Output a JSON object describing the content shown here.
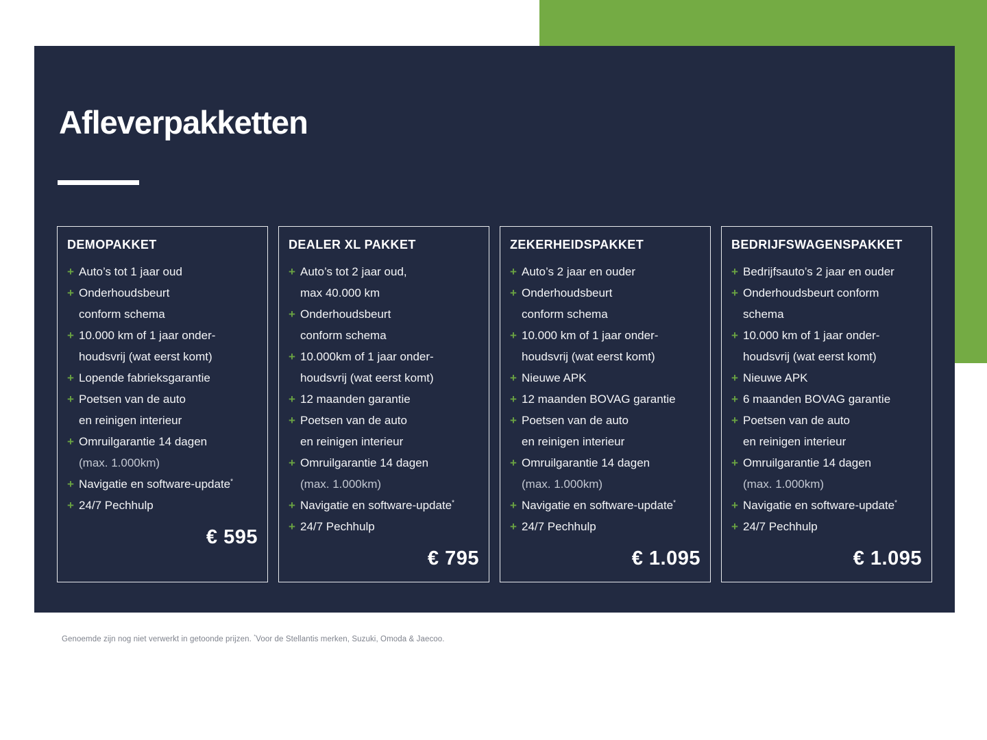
{
  "colors": {
    "background_navy": "#222a41",
    "accent_green": "#74ab44",
    "bullet_green": "#6aa342"
  },
  "bullet_glyph": "+",
  "header": {
    "title": "Afleverpakketten"
  },
  "packages": [
    {
      "name": "DEMOPAKKET",
      "price": "€ 595",
      "items": [
        {
          "lines": [
            {
              "text": "Auto’s tot 1 jaar oud"
            }
          ]
        },
        {
          "lines": [
            {
              "text": "Onderhoudsbeurt"
            },
            {
              "text": "conform schema"
            }
          ]
        },
        {
          "lines": [
            {
              "text": "10.000 km of 1 jaar onder-"
            },
            {
              "text": "houdsvrij (wat eerst komt)"
            }
          ]
        },
        {
          "lines": [
            {
              "text": "Lopende fabrieksgarantie"
            }
          ]
        },
        {
          "lines": [
            {
              "text": "Poetsen van de auto"
            },
            {
              "text": "en reinigen interieur"
            }
          ]
        },
        {
          "lines": [
            {
              "text": "Omruilgarantie 14 dagen"
            },
            {
              "text": "(max. 1.000km)",
              "muted": true
            }
          ]
        },
        {
          "lines": [
            {
              "text": "Navigatie en software-update",
              "sup": "*"
            }
          ]
        },
        {
          "lines": [
            {
              "text": "24/7 Pechhulp"
            }
          ]
        }
      ]
    },
    {
      "name": "DEALER XL PAKKET",
      "price": "€ 795",
      "items": [
        {
          "lines": [
            {
              "text": "Auto’s tot 2 jaar oud,"
            },
            {
              "text": "max 40.000 km"
            }
          ]
        },
        {
          "lines": [
            {
              "text": "Onderhoudsbeurt"
            },
            {
              "text": "conform schema"
            }
          ]
        },
        {
          "lines": [
            {
              "text": "10.000km of 1 jaar onder-"
            },
            {
              "text": "houdsvrij (wat eerst komt)"
            }
          ]
        },
        {
          "lines": [
            {
              "text": "12 maanden garantie"
            }
          ]
        },
        {
          "lines": [
            {
              "text": "Poetsen van de auto"
            },
            {
              "text": "en reinigen interieur"
            }
          ]
        },
        {
          "lines": [
            {
              "text": "Omruilgarantie 14 dagen"
            },
            {
              "text": "(max. 1.000km)",
              "muted": true
            }
          ]
        },
        {
          "lines": [
            {
              "text": "Navigatie en software-update",
              "sup": "*"
            }
          ]
        },
        {
          "lines": [
            {
              "text": "24/7 Pechhulp"
            }
          ]
        }
      ]
    },
    {
      "name": "ZEKERHEIDSPAKKET",
      "price": "€ 1.095",
      "items": [
        {
          "lines": [
            {
              "text": "Auto’s 2 jaar en ouder"
            }
          ]
        },
        {
          "lines": [
            {
              "text": "Onderhoudsbeurt"
            },
            {
              "text": "conform schema"
            }
          ]
        },
        {
          "lines": [
            {
              "text": "10.000 km of 1 jaar onder-"
            },
            {
              "text": "houdsvrij (wat eerst komt)"
            }
          ]
        },
        {
          "lines": [
            {
              "text": "Nieuwe APK"
            }
          ]
        },
        {
          "lines": [
            {
              "text": "12 maanden BOVAG garantie"
            }
          ]
        },
        {
          "lines": [
            {
              "text": "Poetsen van de auto"
            },
            {
              "text": "en reinigen interieur"
            }
          ]
        },
        {
          "lines": [
            {
              "text": "Omruilgarantie 14 dagen"
            },
            {
              "text": "(max. 1.000km)",
              "muted": true
            }
          ]
        },
        {
          "lines": [
            {
              "text": "Navigatie en software-update",
              "sup": "*"
            }
          ]
        },
        {
          "lines": [
            {
              "text": "24/7 Pechhulp"
            }
          ]
        }
      ]
    },
    {
      "name": "BEDRIJFSWAGENSPAKKET",
      "price": "€ 1.095",
      "items": [
        {
          "lines": [
            {
              "text": "Bedrijfsauto’s 2 jaar en ouder"
            }
          ]
        },
        {
          "lines": [
            {
              "text": "Onderhoudsbeurt conform"
            },
            {
              "text": "schema"
            }
          ]
        },
        {
          "lines": [
            {
              "text": "10.000 km of 1 jaar onder-"
            },
            {
              "text": "houdsvrij (wat eerst komt)"
            }
          ]
        },
        {
          "lines": [
            {
              "text": "Nieuwe APK"
            }
          ]
        },
        {
          "lines": [
            {
              "text": "6 maanden BOVAG garantie"
            }
          ]
        },
        {
          "lines": [
            {
              "text": "Poetsen van de auto"
            },
            {
              "text": "en reinigen interieur"
            }
          ]
        },
        {
          "lines": [
            {
              "text": "Omruilgarantie 14 dagen"
            },
            {
              "text": "(max. 1.000km)",
              "muted": true
            }
          ]
        },
        {
          "lines": [
            {
              "text": "Navigatie en software-update",
              "sup": "*"
            }
          ]
        },
        {
          "lines": [
            {
              "text": "24/7 Pechhulp"
            }
          ]
        }
      ]
    }
  ],
  "footnote": {
    "text_before": "Genoemde zijn nog niet verwerkt in getoonde prijzen. ",
    "asterisk": "*",
    "text_after": "Voor de Stellantis merken, Suzuki, Omoda & Jaecoo."
  }
}
